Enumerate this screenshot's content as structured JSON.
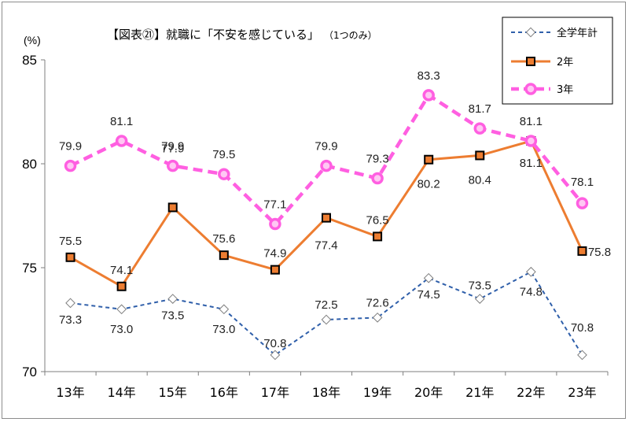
{
  "chart_data": {
    "type": "line",
    "title": "【図表㉑】就職に「不安を感じている」",
    "subtitle": "（1つのみ）",
    "ylabel_unit": "(%)",
    "ylim": [
      70,
      85
    ],
    "yticks": [
      "70",
      "75",
      "80",
      "85"
    ],
    "categories": [
      "13年",
      "14年",
      "15年",
      "16年",
      "17年",
      "18年",
      "19年",
      "20年",
      "21年",
      "22年",
      "23年"
    ],
    "legend_position": "top-right",
    "series": [
      {
        "name": "全学年計",
        "values": [
          73.3,
          73.0,
          73.5,
          73.0,
          70.8,
          72.5,
          72.6,
          74.5,
          73.5,
          74.8,
          70.8
        ],
        "labels": [
          "73.3",
          "73.0",
          "73.5",
          "73.0",
          "70.8",
          "72.5",
          "72.6",
          "74.5",
          "73.5",
          "74.8",
          "70.8"
        ],
        "color": "#2f5faa"
      },
      {
        "name": "2年",
        "values": [
          75.5,
          74.1,
          77.9,
          75.6,
          74.9,
          77.4,
          76.5,
          80.2,
          80.4,
          81.1,
          75.8
        ],
        "labels": [
          "75.5",
          "74.1",
          "77.9",
          "75.6",
          "74.9",
          "77.4",
          "76.5",
          "80.2",
          "80.4",
          "81.1",
          "75.8"
        ],
        "color": "#ed7d31"
      },
      {
        "name": "3年",
        "values": [
          79.9,
          81.1,
          79.9,
          79.5,
          77.1,
          79.9,
          79.3,
          83.3,
          81.7,
          81.1,
          78.1
        ],
        "labels": [
          "79.9",
          "81.1",
          "79.9",
          "79.5",
          "77.1",
          "79.9",
          "79.3",
          "83.3",
          "81.7",
          "81.1",
          "78.1"
        ],
        "color": "#ff5fe1"
      }
    ]
  }
}
